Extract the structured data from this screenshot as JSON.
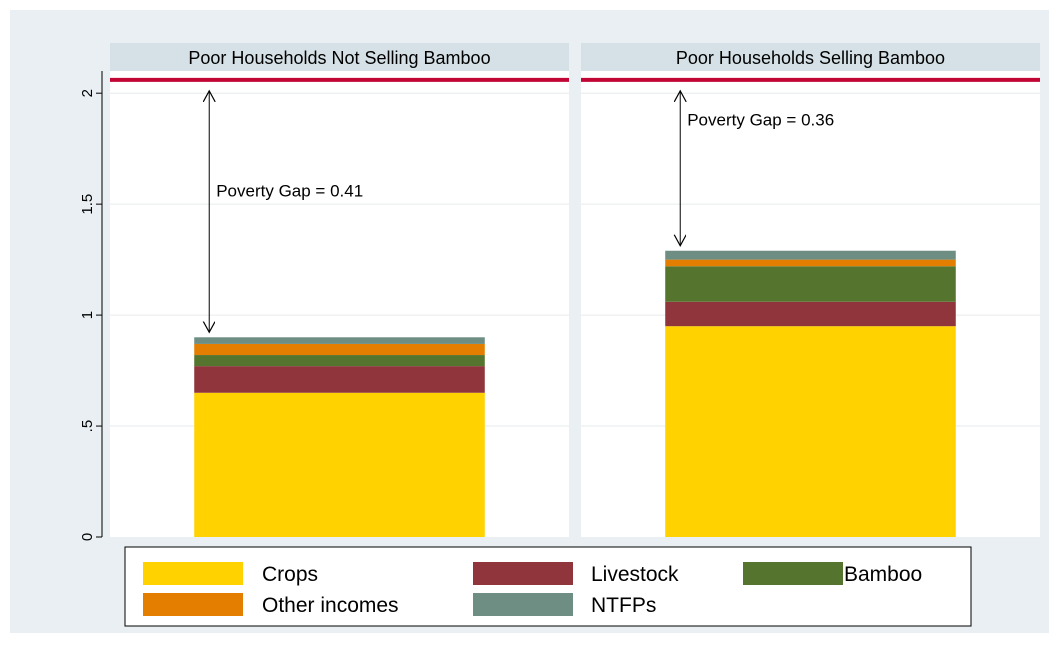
{
  "chart_data": {
    "type": "bar",
    "stacked": true,
    "poverty_line": 2.06,
    "panels": [
      {
        "title": "Poor Households Not Selling Bamboo",
        "annotation": "Poverty Gap = 0.41",
        "values": {
          "Crops": 0.65,
          "Livestock": 0.12,
          "Bamboo": 0.05,
          "Other incomes": 0.05,
          "NTFPs": 0.03
        }
      },
      {
        "title": "Poor Households Selling Bamboo",
        "annotation": "Poverty Gap = 0.36",
        "values": {
          "Crops": 0.95,
          "Livestock": 0.11,
          "Bamboo": 0.16,
          "Other incomes": 0.03,
          "NTFPs": 0.04
        }
      }
    ],
    "series": [
      {
        "name": "Crops",
        "color": "#ffd200"
      },
      {
        "name": "Livestock",
        "color": "#90353b"
      },
      {
        "name": "Bamboo",
        "color": "#55752f"
      },
      {
        "name": "Other incomes",
        "color": "#e37e00"
      },
      {
        "name": "NTFPs",
        "color": "#6e8e84"
      }
    ],
    "y_ticks": [
      {
        "value": 0,
        "label": "0"
      },
      {
        "value": 0.5,
        "label": ".5"
      },
      {
        "value": 1,
        "label": "1"
      },
      {
        "value": 1.5,
        "label": "1.5"
      },
      {
        "value": 2,
        "label": "2"
      }
    ],
    "ylim": [
      0,
      2.1
    ],
    "grid": true,
    "legend_position": "bottom",
    "colors": {
      "poverty_line": "#c10534",
      "panel_header": "#d5e1e6",
      "figure_bg": "#e9eff2"
    }
  }
}
